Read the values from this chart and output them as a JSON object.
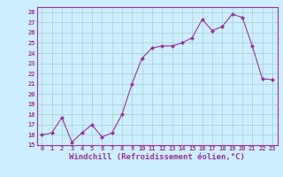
{
  "x": [
    0,
    1,
    2,
    3,
    4,
    5,
    6,
    7,
    8,
    9,
    10,
    11,
    12,
    13,
    14,
    15,
    16,
    17,
    18,
    19,
    20,
    21,
    22,
    23
  ],
  "y": [
    16,
    16.2,
    17.7,
    15.3,
    16.2,
    17,
    15.8,
    16.2,
    18,
    21,
    23.5,
    24.5,
    24.7,
    24.7,
    25,
    25.5,
    27.3,
    26.2,
    26.6,
    27.8,
    27.5,
    24.7,
    21.5,
    21.4
  ],
  "line_color": "#993399",
  "marker": "D",
  "marker_size": 2,
  "bg_color": "#cceeff",
  "grid_color": "#aacccc",
  "xlabel": "Windchill (Refroidissement éolien,°C)",
  "xlim": [
    -0.5,
    23.5
  ],
  "ylim": [
    15,
    28.5
  ],
  "yticks": [
    15,
    16,
    17,
    18,
    19,
    20,
    21,
    22,
    23,
    24,
    25,
    26,
    27,
    28
  ],
  "xticks": [
    0,
    1,
    2,
    3,
    4,
    5,
    6,
    7,
    8,
    9,
    10,
    11,
    12,
    13,
    14,
    15,
    16,
    17,
    18,
    19,
    20,
    21,
    22,
    23
  ],
  "tick_label_fontsize": 5.0,
  "xlabel_fontsize": 6.5,
  "label_color": "#993399"
}
